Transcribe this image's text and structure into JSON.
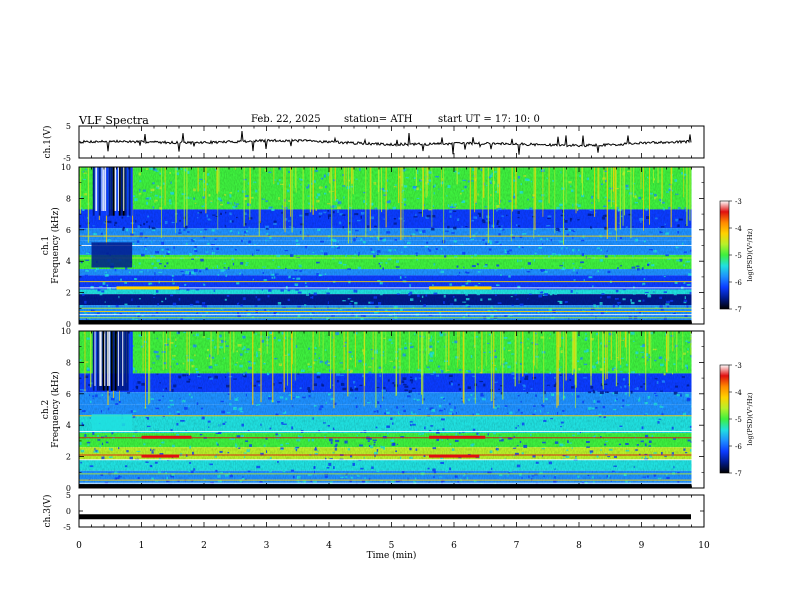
{
  "header": {
    "title": "VLF  Spectra",
    "date": "Feb. 22, 2025",
    "station": "station= ATH",
    "start_ut": "start  UT  =   17: 10: 0"
  },
  "colors": {
    "frame": "#000000",
    "trace": "#000000",
    "colormap": [
      "#000000",
      "#001a8c",
      "#0b3cff",
      "#1e90ff",
      "#20e0e0",
      "#3ef03e",
      "#b8f02a",
      "#ffd200",
      "#ff8a00",
      "#e01010",
      "#ffffff"
    ]
  },
  "chart_data": [
    {
      "type": "line",
      "panel": "ch1-waveform",
      "ylabel": "ch.1(V)",
      "ylim": [
        -5,
        5
      ],
      "y_ticks": [
        "5",
        "-5"
      ],
      "x_range": [
        0,
        10
      ],
      "approx_level": -0.3,
      "noise_amplitude": 0.4,
      "trace_end": 9.8
    },
    {
      "type": "heatmap",
      "panel": "ch1-spectrogram",
      "ylabel": "ch.1",
      "ylabel2": "Frequency  (kHz)",
      "ylim": [
        0,
        10
      ],
      "y_ticks": [
        "0",
        "2",
        "4",
        "6",
        "8",
        "10"
      ],
      "x_range": [
        0,
        10
      ],
      "data_end": 9.8,
      "colorbar": {
        "label": "log(PSD)(V²/Hz)",
        "range": [
          -7,
          -3
        ],
        "ticks": [
          "-3",
          "-4",
          "-5",
          "-6",
          "-7"
        ]
      }
    },
    {
      "type": "heatmap",
      "panel": "ch2-spectrogram",
      "ylabel": "ch.2",
      "ylabel2": "Frequency  (kHz)",
      "ylim": [
        0,
        10
      ],
      "y_ticks": [
        "0",
        "2",
        "4",
        "6",
        "8",
        "10"
      ],
      "x_range": [
        0,
        10
      ],
      "data_end": 9.8,
      "colorbar": {
        "label": "log(PSD)(V²/Hz)",
        "range": [
          -7,
          -3
        ],
        "ticks": [
          "-3",
          "-4",
          "-5",
          "-6",
          "-7"
        ]
      }
    },
    {
      "type": "line",
      "panel": "ch3-waveform",
      "ylabel": "ch.3(V)",
      "ylim": [
        -5,
        5
      ],
      "y_ticks": [
        "5",
        "0",
        "-5"
      ],
      "x_range": [
        0,
        10
      ],
      "approx_level": -1.8,
      "trace_end": 9.8,
      "xlabel": "Time  (min)",
      "x_ticks": [
        "0",
        "1",
        "2",
        "3",
        "4",
        "5",
        "6",
        "7",
        "8",
        "9",
        "10"
      ]
    }
  ]
}
